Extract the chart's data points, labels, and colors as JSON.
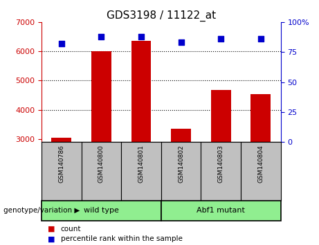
{
  "title": "GDS3198 / 11122_at",
  "samples": [
    "GSM140786",
    "GSM140800",
    "GSM140801",
    "GSM140802",
    "GSM140803",
    "GSM140804"
  ],
  "counts": [
    3050,
    6000,
    6350,
    3350,
    4680,
    4550
  ],
  "percentile_ranks": [
    82,
    88,
    88,
    83,
    86,
    86
  ],
  "ylim_left": [
    2900,
    7000
  ],
  "ylim_right": [
    0,
    100
  ],
  "yticks_left": [
    3000,
    4000,
    5000,
    6000,
    7000
  ],
  "yticks_right": [
    0,
    25,
    50,
    75,
    100
  ],
  "ytick_labels_right": [
    "0",
    "25",
    "50",
    "75",
    "100%"
  ],
  "bar_color": "#CC0000",
  "scatter_color": "#0000CC",
  "left_tick_color": "#CC0000",
  "right_tick_color": "#0000CC",
  "xlabel_area_color": "#C0C0C0",
  "group_box_color": "#90EE90",
  "legend_count_color": "#CC0000",
  "legend_pct_color": "#0000CC",
  "genotype_label": "genotype/variation",
  "legend_count": "count",
  "legend_pct": "percentile rank within the sample",
  "wild_type_label": "wild type",
  "mutant_label": "Abf1 mutant"
}
